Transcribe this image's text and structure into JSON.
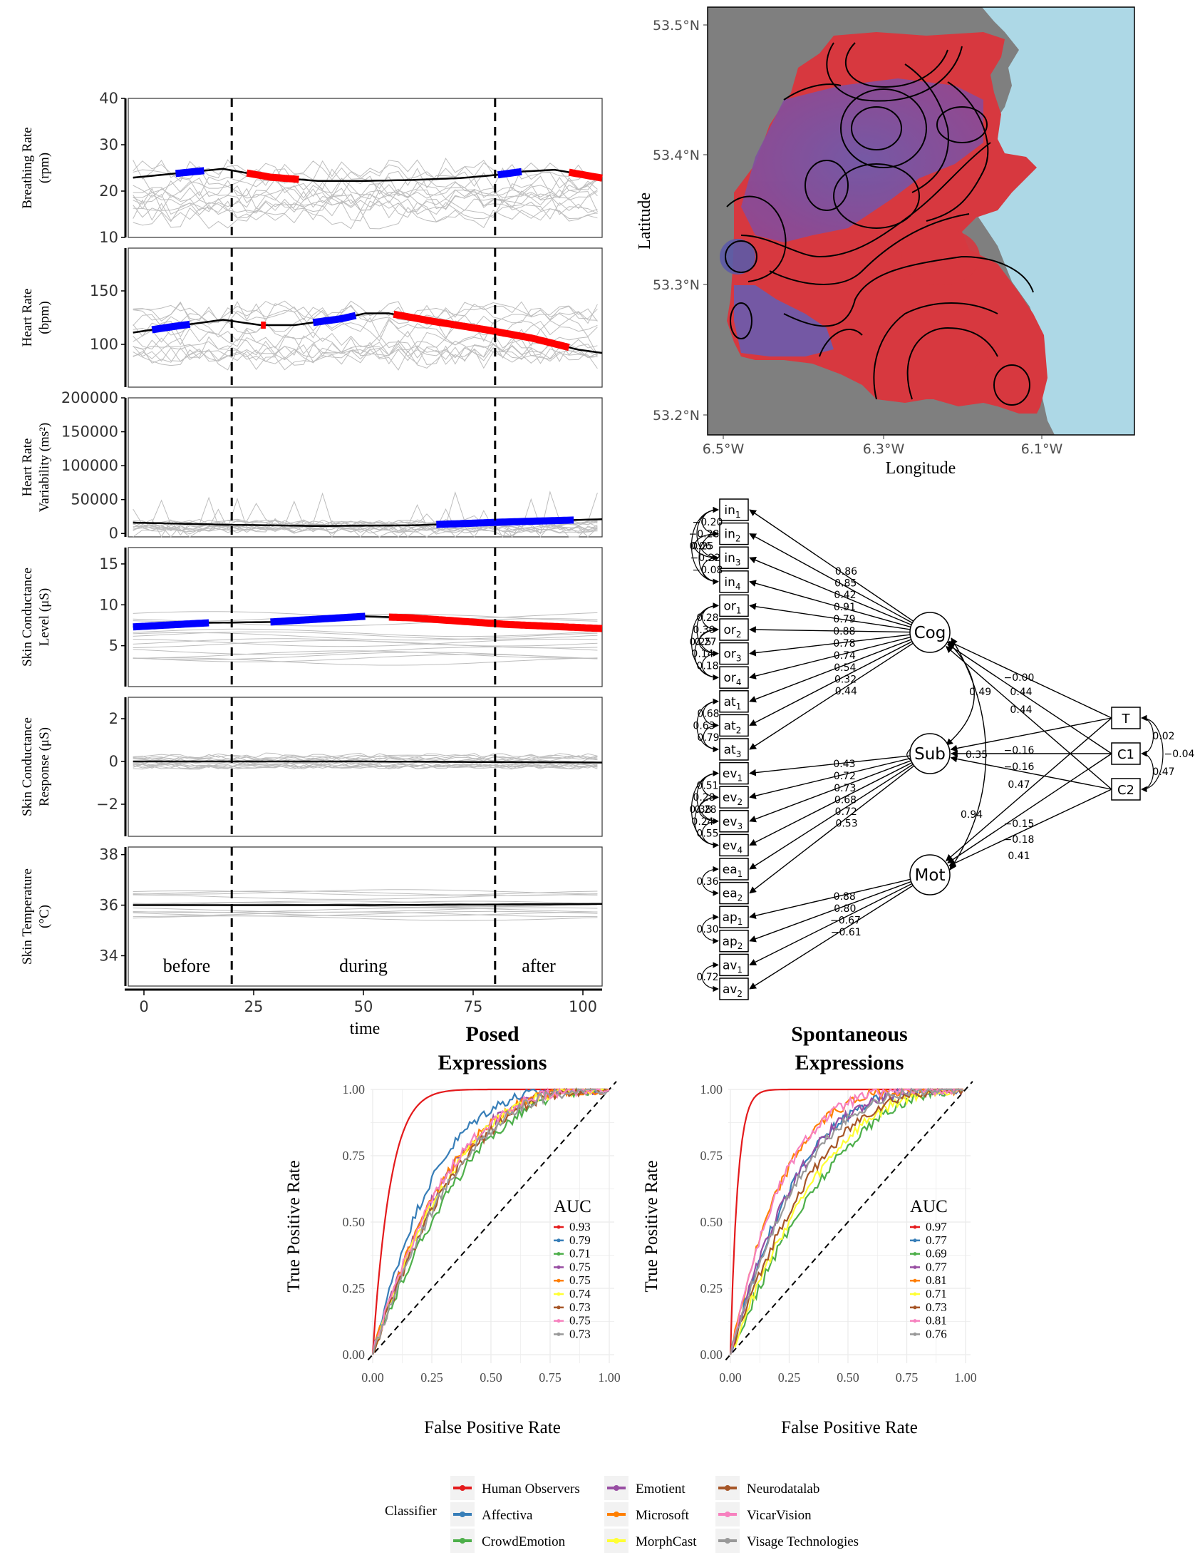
{
  "physio": {
    "xlabel": "time",
    "xticks": [
      "0",
      "25",
      "50",
      "75",
      "100"
    ],
    "phases": [
      "before",
      "during",
      "after"
    ],
    "panels": [
      {
        "id": "br",
        "ylabel": [
          "Breathing Rate",
          "(rpm)"
        ],
        "yticks": [
          "10",
          "20",
          "30",
          "40"
        ]
      },
      {
        "id": "hr",
        "ylabel": [
          "Heart Rate",
          "(bpm)"
        ],
        "yticks": [
          "100",
          "150"
        ]
      },
      {
        "id": "hrv",
        "ylabel": [
          "Heart Rate",
          "Variability (ms²)"
        ],
        "yticks": [
          "0",
          "50000",
          "100000",
          "150000",
          "200000"
        ]
      },
      {
        "id": "scl",
        "ylabel": [
          "Skin Conductance",
          "Level (μS)"
        ],
        "yticks": [
          "5",
          "10",
          "15"
        ]
      },
      {
        "id": "scr",
        "ylabel": [
          "Skin Conductance",
          "Response (μS)"
        ],
        "yticks": [
          "−2",
          "0",
          "2"
        ]
      },
      {
        "id": "st",
        "ylabel": [
          "Skin Temperature",
          "(°C)"
        ],
        "yticks": [
          "34",
          "36",
          "38"
        ]
      }
    ]
  },
  "map": {
    "xlabel": "Longitude",
    "ylabel": "Latitude",
    "xticks": [
      "6.5°W",
      "6.3°W",
      "6.1°W"
    ],
    "yticks": [
      "53.5°N",
      "53.4°N",
      "53.3°N",
      "53.2°N"
    ],
    "colors": {
      "land": "#7f7f7f",
      "sea": "#add8e6",
      "high": "#d7383f",
      "low": "#6a5cb0"
    }
  },
  "sem": {
    "indicators": [
      {
        "base": "in",
        "sub": "1"
      },
      {
        "base": "in",
        "sub": "2"
      },
      {
        "base": "in",
        "sub": "3"
      },
      {
        "base": "in",
        "sub": "4"
      },
      {
        "base": "or",
        "sub": "1"
      },
      {
        "base": "or",
        "sub": "2"
      },
      {
        "base": "or",
        "sub": "3"
      },
      {
        "base": "or",
        "sub": "4"
      },
      {
        "base": "at",
        "sub": "1"
      },
      {
        "base": "at",
        "sub": "2"
      },
      {
        "base": "at",
        "sub": "3"
      },
      {
        "base": "ev",
        "sub": "1"
      },
      {
        "base": "ev",
        "sub": "2"
      },
      {
        "base": "ev",
        "sub": "3"
      },
      {
        "base": "ev",
        "sub": "4"
      },
      {
        "base": "ea",
        "sub": "1"
      },
      {
        "base": "ea",
        "sub": "2"
      },
      {
        "base": "ap",
        "sub": "1"
      },
      {
        "base": "ap",
        "sub": "2"
      },
      {
        "base": "av",
        "sub": "1"
      },
      {
        "base": "av",
        "sub": "2"
      }
    ],
    "latents": [
      "Cog",
      "Sub",
      "Mot"
    ],
    "covariates": [
      "T",
      "C1",
      "C2"
    ],
    "loadings_cog": [
      "0.86",
      "0.85",
      "0.42",
      "0.91",
      "0.79",
      "0.88",
      "0.78",
      "0.74",
      "0.54",
      "0.32",
      "0.44"
    ],
    "loadings_sub": [
      "0.43",
      "0.72",
      "0.73",
      "0.68",
      "0.72",
      "0.53"
    ],
    "loadings_mot": [
      "0.88",
      "0.80",
      "−0.67",
      "−0.61"
    ],
    "cov_paths": [
      "−0.00",
      "0.44",
      "0.44",
      "−0.16",
      "−0.16",
      "0.47",
      "−0.15",
      "−0.18",
      "0.41"
    ],
    "latent_cov": [
      "0.49",
      "0.35",
      "0.94"
    ],
    "covariate_cov": [
      "0.02",
      "−0.04",
      "0.47"
    ],
    "residuals": [
      "−0.20",
      "−0.28",
      "0.06",
      "0.25",
      "−0.22",
      "−0.08",
      "0.28",
      "0.30",
      "0.25",
      "0.27",
      "0.14",
      "0.18",
      "0.68",
      "0.63",
      "0.79",
      "0.51",
      "0.28",
      "0.38",
      "0.28",
      "0.24",
      "0.55",
      "0.36",
      "0.30",
      "0.72"
    ]
  },
  "roc": {
    "xlabel": "False Positive Rate",
    "ylabel": "True Positive Rate",
    "ticks": [
      "0.00",
      "0.25",
      "0.50",
      "0.75",
      "1.00"
    ],
    "legend_title": "AUC",
    "classifier_title": "Classifier",
    "classifiers": [
      {
        "name": "Human Observers",
        "color": "#e41a1c"
      },
      {
        "name": "Affectiva",
        "color": "#377eb8"
      },
      {
        "name": "CrowdEmotion",
        "color": "#4daf4a"
      },
      {
        "name": "Emotient",
        "color": "#984ea3"
      },
      {
        "name": "Microsoft",
        "color": "#ff7f00"
      },
      {
        "name": "MorphCast",
        "color": "#ffff33"
      },
      {
        "name": "Neurodatalab",
        "color": "#a65628"
      },
      {
        "name": "VicarVision",
        "color": "#f781bf"
      },
      {
        "name": "Visage Technologies",
        "color": "#999999"
      }
    ],
    "panels": [
      {
        "title": [
          "Posed",
          "Expressions"
        ],
        "auc": [
          "0.93",
          "0.79",
          "0.71",
          "0.75",
          "0.75",
          "0.74",
          "0.73",
          "0.75",
          "0.73"
        ]
      },
      {
        "title": [
          "Spontaneous",
          "Expressions"
        ],
        "auc": [
          "0.97",
          "0.77",
          "0.69",
          "0.77",
          "0.81",
          "0.71",
          "0.73",
          "0.81",
          "0.76"
        ]
      }
    ]
  },
  "chart_data": [
    {
      "type": "line",
      "title": "",
      "xlabel": "time",
      "xlim": [
        0,
        100
      ],
      "phase_boundaries": [
        20,
        80
      ],
      "highlight_colors": {
        "increase": "#0000ff",
        "decrease": "#ff0000"
      },
      "series": [
        {
          "name": "Breathing Rate (rpm)",
          "ylim": [
            10,
            40
          ],
          "x": [
            1,
            20,
            30,
            40,
            50,
            60,
            70,
            78,
            83,
            90,
            100
          ],
          "values": [
            22.9,
            24.8,
            23.0,
            22.2,
            22.2,
            22.4,
            22.8,
            23.5,
            24.2,
            24.6,
            22.8
          ],
          "increase": [
            [
              10,
              16
            ],
            [
              78,
              83
            ]
          ],
          "decrease": [
            [
              25,
              36
            ],
            [
              93,
              100
            ]
          ]
        },
        {
          "name": "Heart Rate (bpm)",
          "ylim": [
            60,
            190
          ],
          "x": [
            1,
            10,
            20,
            28,
            35,
            45,
            50,
            55,
            65,
            75,
            85,
            95,
            100
          ],
          "values": [
            111,
            117,
            123,
            118,
            118,
            124,
            129,
            129,
            121,
            114,
            106,
            95,
            92
          ],
          "increase": [
            [
              5,
              13
            ],
            [
              39,
              48
            ]
          ],
          "decrease": [
            [
              28,
              29
            ],
            [
              56,
              93
            ]
          ]
        },
        {
          "name": "Heart Rate Variability (ms²)",
          "ylim": [
            -5000,
            200000
          ],
          "x": [
            1,
            20,
            40,
            60,
            80,
            100
          ],
          "values": [
            16000,
            13000,
            11000,
            12000,
            17000,
            21000
          ],
          "increase": [
            [
              65,
              94
            ]
          ],
          "decrease": []
        },
        {
          "name": "Skin Conductance Level (μS)",
          "ylim": [
            0,
            17
          ],
          "x": [
            1,
            17,
            30,
            50,
            60,
            70,
            80,
            100
          ],
          "values": [
            7.3,
            7.8,
            7.9,
            8.6,
            8.4,
            8.0,
            7.6,
            7.1
          ],
          "increase": [
            [
              1,
              17
            ],
            [
              30,
              50
            ]
          ],
          "decrease": [
            [
              55,
              100
            ]
          ]
        },
        {
          "name": "Skin Conductance Response (μS)",
          "ylim": [
            -3.5,
            3
          ],
          "x": [
            1,
            50,
            100
          ],
          "values": [
            0.0,
            0.0,
            -0.05
          ],
          "increase": [],
          "decrease": []
        },
        {
          "name": "Skin Temperature (°C)",
          "ylim": [
            32.8,
            38.3
          ],
          "x": [
            1,
            50,
            100
          ],
          "values": [
            36.0,
            36.0,
            36.05
          ],
          "increase": [],
          "decrease": []
        }
      ]
    },
    {
      "type": "heatmap",
      "title": "",
      "xlabel": "Longitude",
      "ylabel": "Latitude",
      "xlim": [
        -6.52,
        -6.02
      ],
      "ylim": [
        53.19,
        53.51
      ],
      "notes": "Interpolated spatial surface over land; red = high, purple/blue = low, with black contour lines."
    },
    {
      "type": "line",
      "title": "Posed Expressions",
      "xlabel": "False Positive Rate",
      "ylabel": "True Positive Rate",
      "xlim": [
        0,
        1
      ],
      "ylim": [
        0,
        1
      ],
      "series": [
        {
          "name": "Human Observers",
          "auc": 0.93
        },
        {
          "name": "Affectiva",
          "auc": 0.79
        },
        {
          "name": "CrowdEmotion",
          "auc": 0.71
        },
        {
          "name": "Emotient",
          "auc": 0.75
        },
        {
          "name": "Microsoft",
          "auc": 0.75
        },
        {
          "name": "MorphCast",
          "auc": 0.74
        },
        {
          "name": "Neurodatalab",
          "auc": 0.73
        },
        {
          "name": "VicarVision",
          "auc": 0.75
        },
        {
          "name": "Visage Technologies",
          "auc": 0.73
        }
      ]
    },
    {
      "type": "line",
      "title": "Spontaneous Expressions",
      "xlabel": "False Positive Rate",
      "ylabel": "True Positive Rate",
      "xlim": [
        0,
        1
      ],
      "ylim": [
        0,
        1
      ],
      "series": [
        {
          "name": "Human Observers",
          "auc": 0.97
        },
        {
          "name": "Affectiva",
          "auc": 0.77
        },
        {
          "name": "CrowdEmotion",
          "auc": 0.69
        },
        {
          "name": "Emotient",
          "auc": 0.77
        },
        {
          "name": "Microsoft",
          "auc": 0.81
        },
        {
          "name": "MorphCast",
          "auc": 0.71
        },
        {
          "name": "Neurodatalab",
          "auc": 0.73
        },
        {
          "name": "VicarVision",
          "auc": 0.81
        },
        {
          "name": "Visage Technologies",
          "auc": 0.76
        }
      ]
    }
  ]
}
